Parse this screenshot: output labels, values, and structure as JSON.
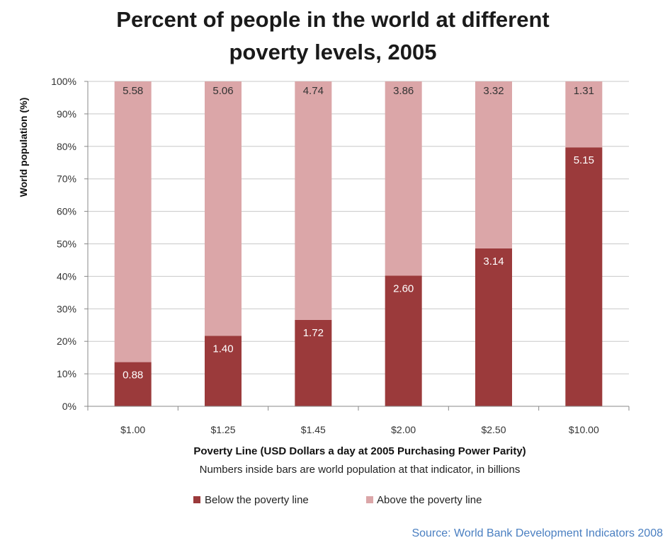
{
  "chart_data": {
    "type": "bar",
    "stacked": true,
    "title_lines": [
      "Percent of people in the world at different",
      "poverty levels, 2005"
    ],
    "xlabel": "Poverty Line (USD Dollars a day at 2005 Purchasing Power Parity)",
    "note": "Numbers inside bars are world population at that indicator, in billions",
    "ylabel": "World population  (%)",
    "source": "Source: World Bank Development Indicators 2008",
    "categories": [
      "$1.00",
      "$1.25",
      "$1.45",
      "$2.00",
      "$2.50",
      "$10.00"
    ],
    "ylim": [
      0,
      100
    ],
    "yticks": [
      "0%",
      "10%",
      "20%",
      "30%",
      "40%",
      "50%",
      "60%",
      "70%",
      "80%",
      "90%",
      "100%"
    ],
    "grid": true,
    "legend_position": "bottom",
    "series": [
      {
        "name": "Below the poverty line",
        "color": "#9b3a3b",
        "values": [
          13.6,
          21.7,
          26.6,
          40.2,
          48.6,
          79.7
        ],
        "labels": [
          "0.88",
          "1.40",
          "1.72",
          "2.60",
          "3.14",
          "5.15"
        ]
      },
      {
        "name": "Above the poverty line",
        "color": "#dba6a8",
        "values": [
          86.4,
          78.3,
          73.4,
          59.8,
          51.4,
          20.3
        ],
        "labels": [
          "5.58",
          "5.06",
          "4.74",
          "3.86",
          "3.32",
          "1.31"
        ]
      }
    ]
  }
}
